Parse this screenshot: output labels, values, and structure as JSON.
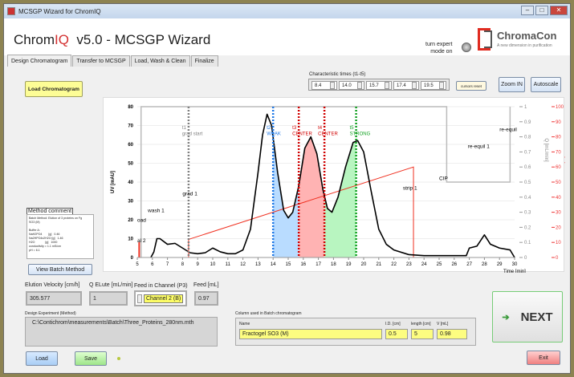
{
  "window": {
    "title": "MCSGP Wizard for ChromIQ",
    "minimize": "–",
    "maximize": "□",
    "close": "✕"
  },
  "header": {
    "title_prefix": "Chrom",
    "title_iq": "IQ",
    "title_rest": "  v5.0 - MCSGP Wizard",
    "expert_label_1": "turn expert",
    "expert_label_2": "mode on",
    "logo_name": "ChromaCon",
    "logo_tagline": "A new dimension in purification"
  },
  "tabs": [
    {
      "label": "Design Chromatogram",
      "active": true
    },
    {
      "label": "Transfer to MCSGP"
    },
    {
      "label": "Load, Wash & Clean"
    },
    {
      "label": "Finalize"
    }
  ],
  "toolbar": {
    "load_chromatogram": "Load Chromatogram",
    "char_times_label": "Characteristic times (t1-t5)",
    "char_times": [
      "8.4",
      "14.0",
      "15.7",
      "17.4",
      "19.5"
    ],
    "cursors_reset": "cursors reset",
    "zoom_in": "Zoom IN",
    "autoscale": "Autoscale"
  },
  "method_comment": {
    "label": "Method comment",
    "lines": [
      "Batch Method: Elution of 3 proteins on Fg",
      "SO3 (M)",
      "",
      "Buffer A:",
      "NaH2PO4        [g]   0.46",
      "Na2HPO4x2H2O [g]   1.46",
      "H2O             [g]   1000",
      "conductivity = 1.1 mS/cm",
      "pH = 6.1"
    ]
  },
  "view_batch_method": "View Batch Method",
  "params": {
    "elution_velocity_label": "Elution Velocity [cm/h]",
    "elution_velocity": "305.577",
    "q_elute_label": "Q ELute [mL/min]",
    "q_elute": "1",
    "feed_channel_label": "Feed in Channel (P3)",
    "feed_channel": "Channel 2 (B)",
    "feed_label": "Feed [mL]",
    "feed": "0.97"
  },
  "design_experiment": {
    "label": "Design Experiment (Method)",
    "path": "C:\\Contichrom\\measurements\\Batch\\Three_Proteins_280nm.mth"
  },
  "column": {
    "label": "Column used in Batch chromatogram",
    "name_label": "Name",
    "name": "Fractogel SO3 (M)",
    "id_label": "I.D. [cm]",
    "id": "0.5",
    "length_label": "length [cm]",
    "length": "5",
    "v_label": "V [mL]",
    "v": "0.98"
  },
  "buttons": {
    "next": "NEXT",
    "load": "Load",
    "save": "Save",
    "exit": "Exit"
  },
  "colors": {
    "accent": "#d32f2f",
    "load_btn": "#fdfd96",
    "weak": "#b9dcff",
    "center": "#ffb3b3",
    "strong": "#b8f5c0"
  },
  "chart_data": {
    "type": "line",
    "xlabel": "Time [min]",
    "ylabel": "UV [mAU]",
    "y2label": "Q [mL/min]",
    "y3label": "Gradient [%]",
    "xlim": [
      5,
      30
    ],
    "ylim": [
      0,
      80
    ],
    "y2lim": [
      0,
      1
    ],
    "y3lim": [
      0,
      100
    ],
    "xticks": [
      5,
      6,
      7,
      8,
      9,
      10,
      11,
      12,
      13,
      14,
      15,
      16,
      17,
      18,
      19,
      20,
      21,
      22,
      23,
      24,
      25,
      26,
      27,
      28,
      29,
      30
    ],
    "yticks": [
      0,
      10,
      20,
      30,
      40,
      50,
      60,
      70,
      80
    ],
    "y2ticks": [
      "0",
      "0.1",
      "0.2",
      "0.3",
      "0.4",
      "0.5",
      "0.6",
      "0.7",
      "0.8",
      "0.9",
      "1"
    ],
    "y3ticks": [
      "0",
      "10",
      "20",
      "30",
      "40",
      "50",
      "60",
      "70",
      "80",
      "90",
      "100"
    ],
    "grid": true,
    "uv": [
      [
        5.9,
        0
      ],
      [
        6.1,
        3
      ],
      [
        6.3,
        10
      ],
      [
        6.5,
        10
      ],
      [
        7,
        7
      ],
      [
        7.5,
        7.5
      ],
      [
        8,
        5
      ],
      [
        8.5,
        2.5
      ],
      [
        9,
        2
      ],
      [
        9.5,
        2.5
      ],
      [
        10,
        5
      ],
      [
        10.5,
        3
      ],
      [
        11,
        2
      ],
      [
        11.5,
        2
      ],
      [
        12,
        4
      ],
      [
        12.5,
        15
      ],
      [
        13,
        45
      ],
      [
        13.3,
        65
      ],
      [
        13.6,
        76
      ],
      [
        13.9,
        70
      ],
      [
        14.3,
        45
      ],
      [
        14.7,
        25
      ],
      [
        15,
        21
      ],
      [
        15.3,
        24
      ],
      [
        15.7,
        38
      ],
      [
        16.1,
        58
      ],
      [
        16.5,
        64
      ],
      [
        16.9,
        55
      ],
      [
        17.3,
        36
      ],
      [
        17.6,
        26
      ],
      [
        17.9,
        24
      ],
      [
        18.3,
        32
      ],
      [
        18.8,
        48
      ],
      [
        19.3,
        61
      ],
      [
        19.6,
        62
      ],
      [
        20,
        56
      ],
      [
        20.5,
        35
      ],
      [
        21,
        15
      ],
      [
        21.5,
        7
      ],
      [
        22,
        4
      ],
      [
        23,
        1.5
      ],
      [
        24,
        1
      ],
      [
        25,
        1
      ],
      [
        26,
        1
      ],
      [
        26.8,
        1
      ],
      [
        27,
        5
      ],
      [
        27.5,
        6
      ],
      [
        28,
        12
      ],
      [
        28.4,
        7
      ],
      [
        29,
        5
      ],
      [
        29.7,
        4
      ],
      [
        30,
        0
      ]
    ],
    "gradient_pct": [
      [
        5.1,
        0
      ],
      [
        5.1,
        10
      ],
      [
        5.15,
        10
      ],
      [
        5.15,
        0
      ],
      [
        8.4,
        0
      ],
      [
        8.4,
        12
      ],
      [
        23.3,
        60
      ],
      [
        23.3,
        0
      ],
      [
        30,
        0
      ]
    ],
    "flow": [
      [
        5.25,
        0
      ],
      [
        5.25,
        1
      ],
      [
        25.5,
        1
      ],
      [
        25.5,
        0.5
      ],
      [
        29.7,
        0.5
      ],
      [
        29.7,
        1
      ]
    ],
    "cursors": [
      {
        "label": "t1",
        "sub": "grad start",
        "x": 8.4,
        "color": "#808080"
      },
      {
        "label": "t2",
        "sub": "WEAK",
        "x": 14.0,
        "color": "#1e78e6"
      },
      {
        "label": "t3",
        "sub": "CENTER",
        "x": 15.7,
        "color": "#d00000"
      },
      {
        "label": "t4",
        "sub": "CENTER",
        "x": 17.4,
        "color": "#d00000"
      },
      {
        "label": "t5",
        "sub": "STRONG",
        "x": 19.5,
        "color": "#10a020"
      }
    ],
    "regions": [
      {
        "from": 14.0,
        "to": 15.7,
        "color": "#b9dcff"
      },
      {
        "from": 15.7,
        "to": 17.4,
        "color": "#ffb3b3"
      },
      {
        "from": 17.4,
        "to": 19.5,
        "color": "#b8f5c0"
      }
    ],
    "annotations": [
      {
        "text": "al 2",
        "x": 5.0,
        "y": 8
      },
      {
        "text": "oad",
        "x": 5.0,
        "y": 19
      },
      {
        "text": "wash 1",
        "x": 5.7,
        "y": 24
      },
      {
        "text": "grad 1",
        "x": 8.0,
        "y": 33
      },
      {
        "text": "strip 1",
        "x": 22.6,
        "y": 36
      },
      {
        "text": "CIP",
        "x": 25.0,
        "y": 41
      },
      {
        "text": "re-equil 1",
        "x": 26.9,
        "y": 58
      },
      {
        "text": "re-equil",
        "x": 29.0,
        "y": 67
      }
    ]
  }
}
